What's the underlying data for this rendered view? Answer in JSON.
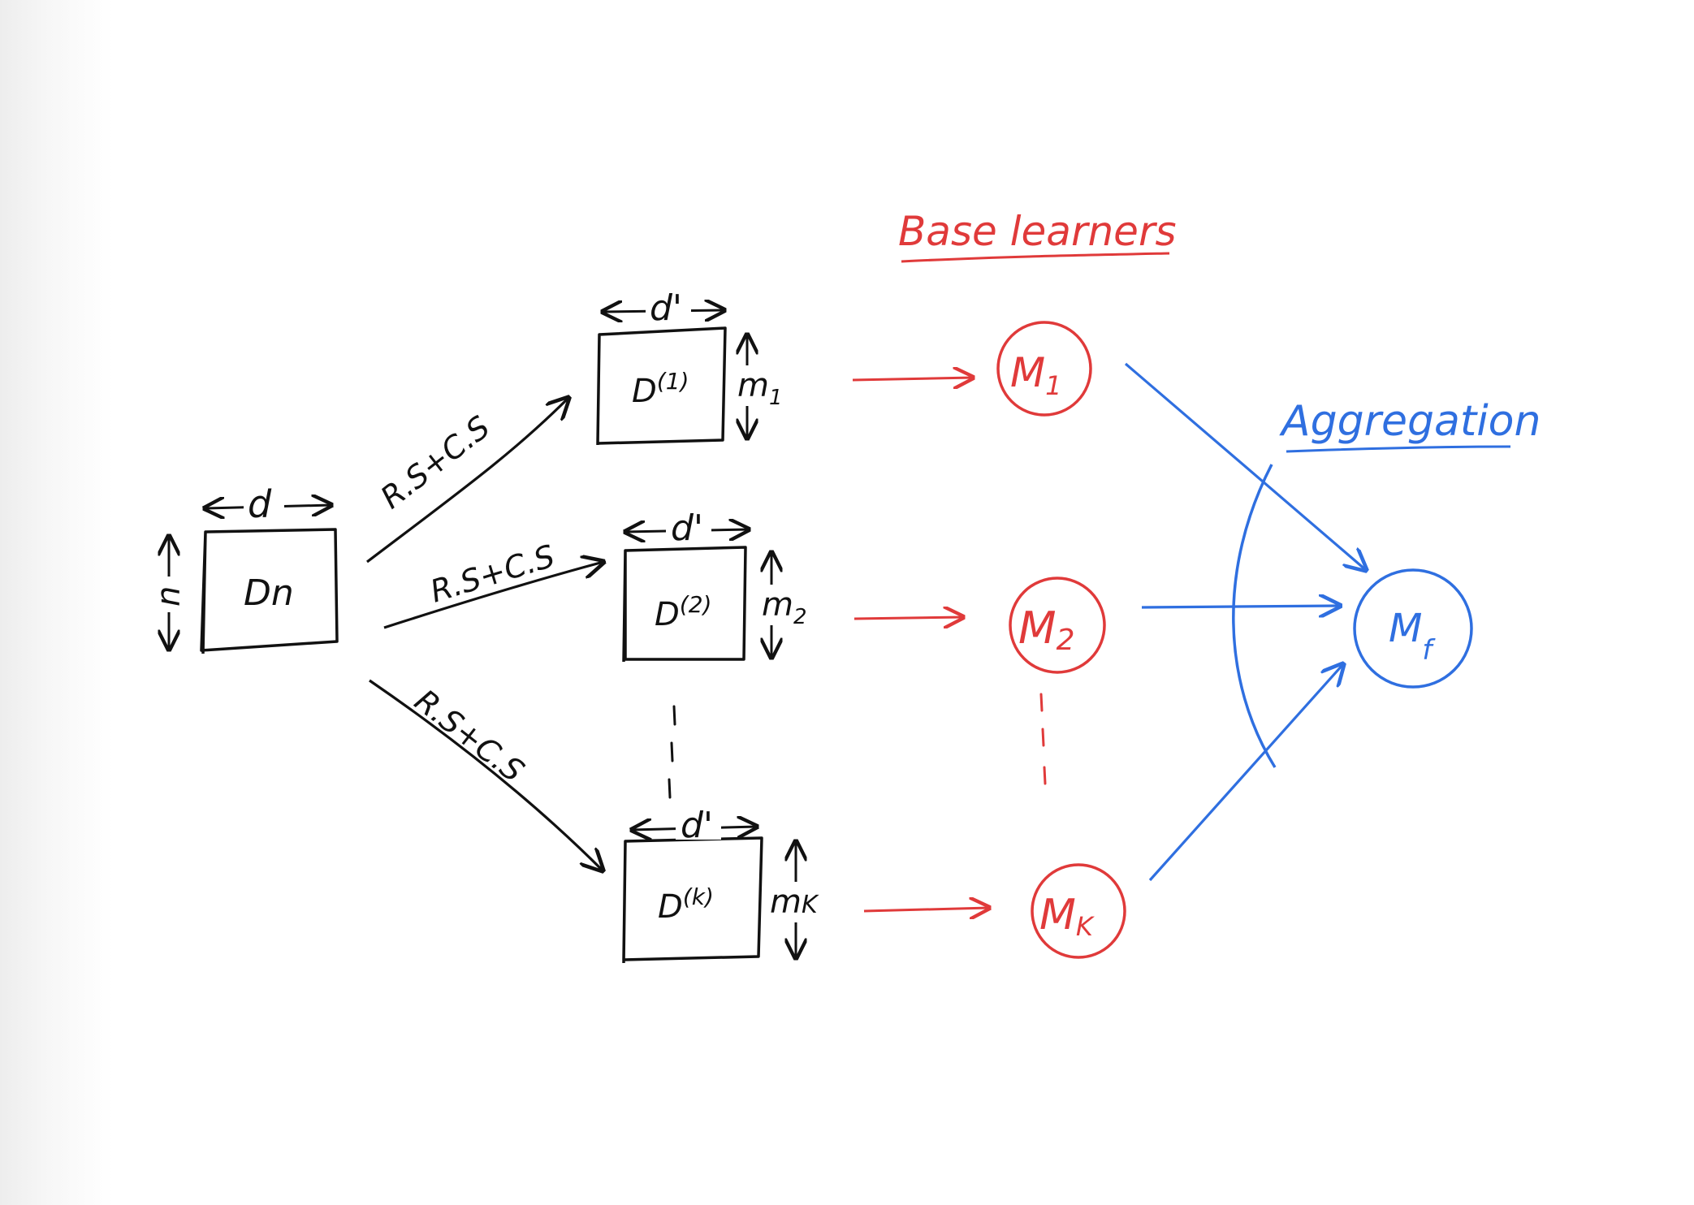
{
  "colors": {
    "black": "#111111",
    "red": "#e03a3a",
    "blue": "#2f6fe0",
    "background": "#ffffff"
  },
  "headings": {
    "base_learners": "Base learners",
    "aggregation": "Aggregation"
  },
  "source": {
    "label": "Dn",
    "width_label": "d",
    "height_label": "n"
  },
  "edge_label": "R.S+C.S",
  "subsets": [
    {
      "label": "D",
      "superscript": "(1)",
      "width_label": "d'",
      "height_label": "m",
      "height_sub": "1"
    },
    {
      "label": "D",
      "superscript": "(2)",
      "width_label": "d'",
      "height_label": "m",
      "height_sub": "2"
    },
    {
      "label": "D",
      "superscript": "(k)",
      "width_label": "d'",
      "height_label": "m",
      "height_sub": "K"
    }
  ],
  "models": [
    {
      "label": "M",
      "sub": "1"
    },
    {
      "label": "M",
      "sub": "2"
    },
    {
      "label": "M",
      "sub": "K"
    }
  ],
  "final_model": {
    "label": "M",
    "sub": "f"
  }
}
